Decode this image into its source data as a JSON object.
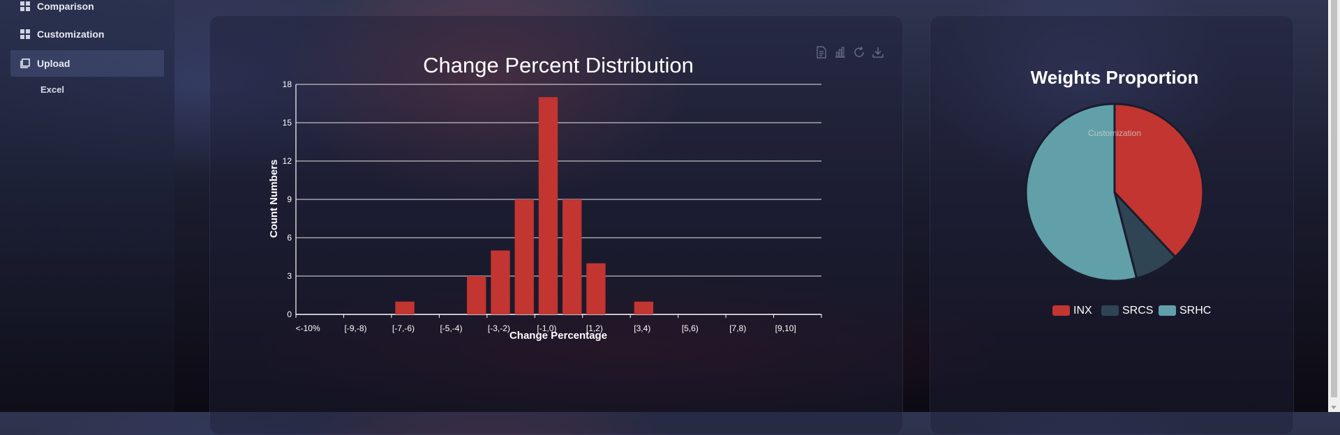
{
  "sidebar": {
    "items": [
      {
        "label": "Comparison",
        "icon": "dashboard-icon"
      },
      {
        "label": "Customization",
        "icon": "dashboard-icon"
      },
      {
        "label": "Upload",
        "icon": "copy-icon"
      }
    ],
    "sub_item": "Excel"
  },
  "histogram": {
    "toolbox": [
      "data-view-icon",
      "bar-type-icon",
      "restore-icon",
      "save-image-icon"
    ]
  },
  "pie_overlay_text": "Customization",
  "colors": {
    "red": "#c23531",
    "dark": "#2f4554",
    "teal": "#61a0a8"
  },
  "chart_data": [
    {
      "type": "bar",
      "title": "Change Percent Distribution",
      "xlabel": "Change Percentage",
      "ylabel": "Count Numbers",
      "categories": [
        "<-10%",
        "[-9,-8)",
        "[-7,-6)",
        "[-5,-4)",
        "[-3,-2)",
        "[-1,0)",
        "[1,2)",
        "[3,4)",
        "[5,6)",
        "[7,8)",
        "[9,10]"
      ],
      "bars": [
        {
          "category": "[-7,-6)",
          "value": 1
        },
        {
          "category": "[-5,-4)",
          "value": 3
        },
        {
          "category": "[-5,-4)",
          "value": 5
        },
        {
          "category": "[-3,-2)",
          "value": 9
        },
        {
          "category": "[-3,-2)",
          "value": 17
        },
        {
          "category": "[-1,0)",
          "value": 9
        },
        {
          "category": "[-1,0)",
          "value": 4
        },
        {
          "category": "[3,4)",
          "value": 1
        }
      ],
      "ylim": [
        0,
        18
      ],
      "yticks": [
        0,
        3,
        6,
        9,
        12,
        15,
        18
      ],
      "grid": true,
      "color": "#c23531"
    },
    {
      "type": "pie",
      "title": "Weights Proportion",
      "slices": [
        {
          "name": "INX",
          "value": 38,
          "color": "#c23531"
        },
        {
          "name": "SRCS",
          "value": 8,
          "color": "#2f4554"
        },
        {
          "name": "SRHC",
          "value": 54,
          "color": "#61a0a8"
        }
      ],
      "legend": "bottom"
    }
  ]
}
